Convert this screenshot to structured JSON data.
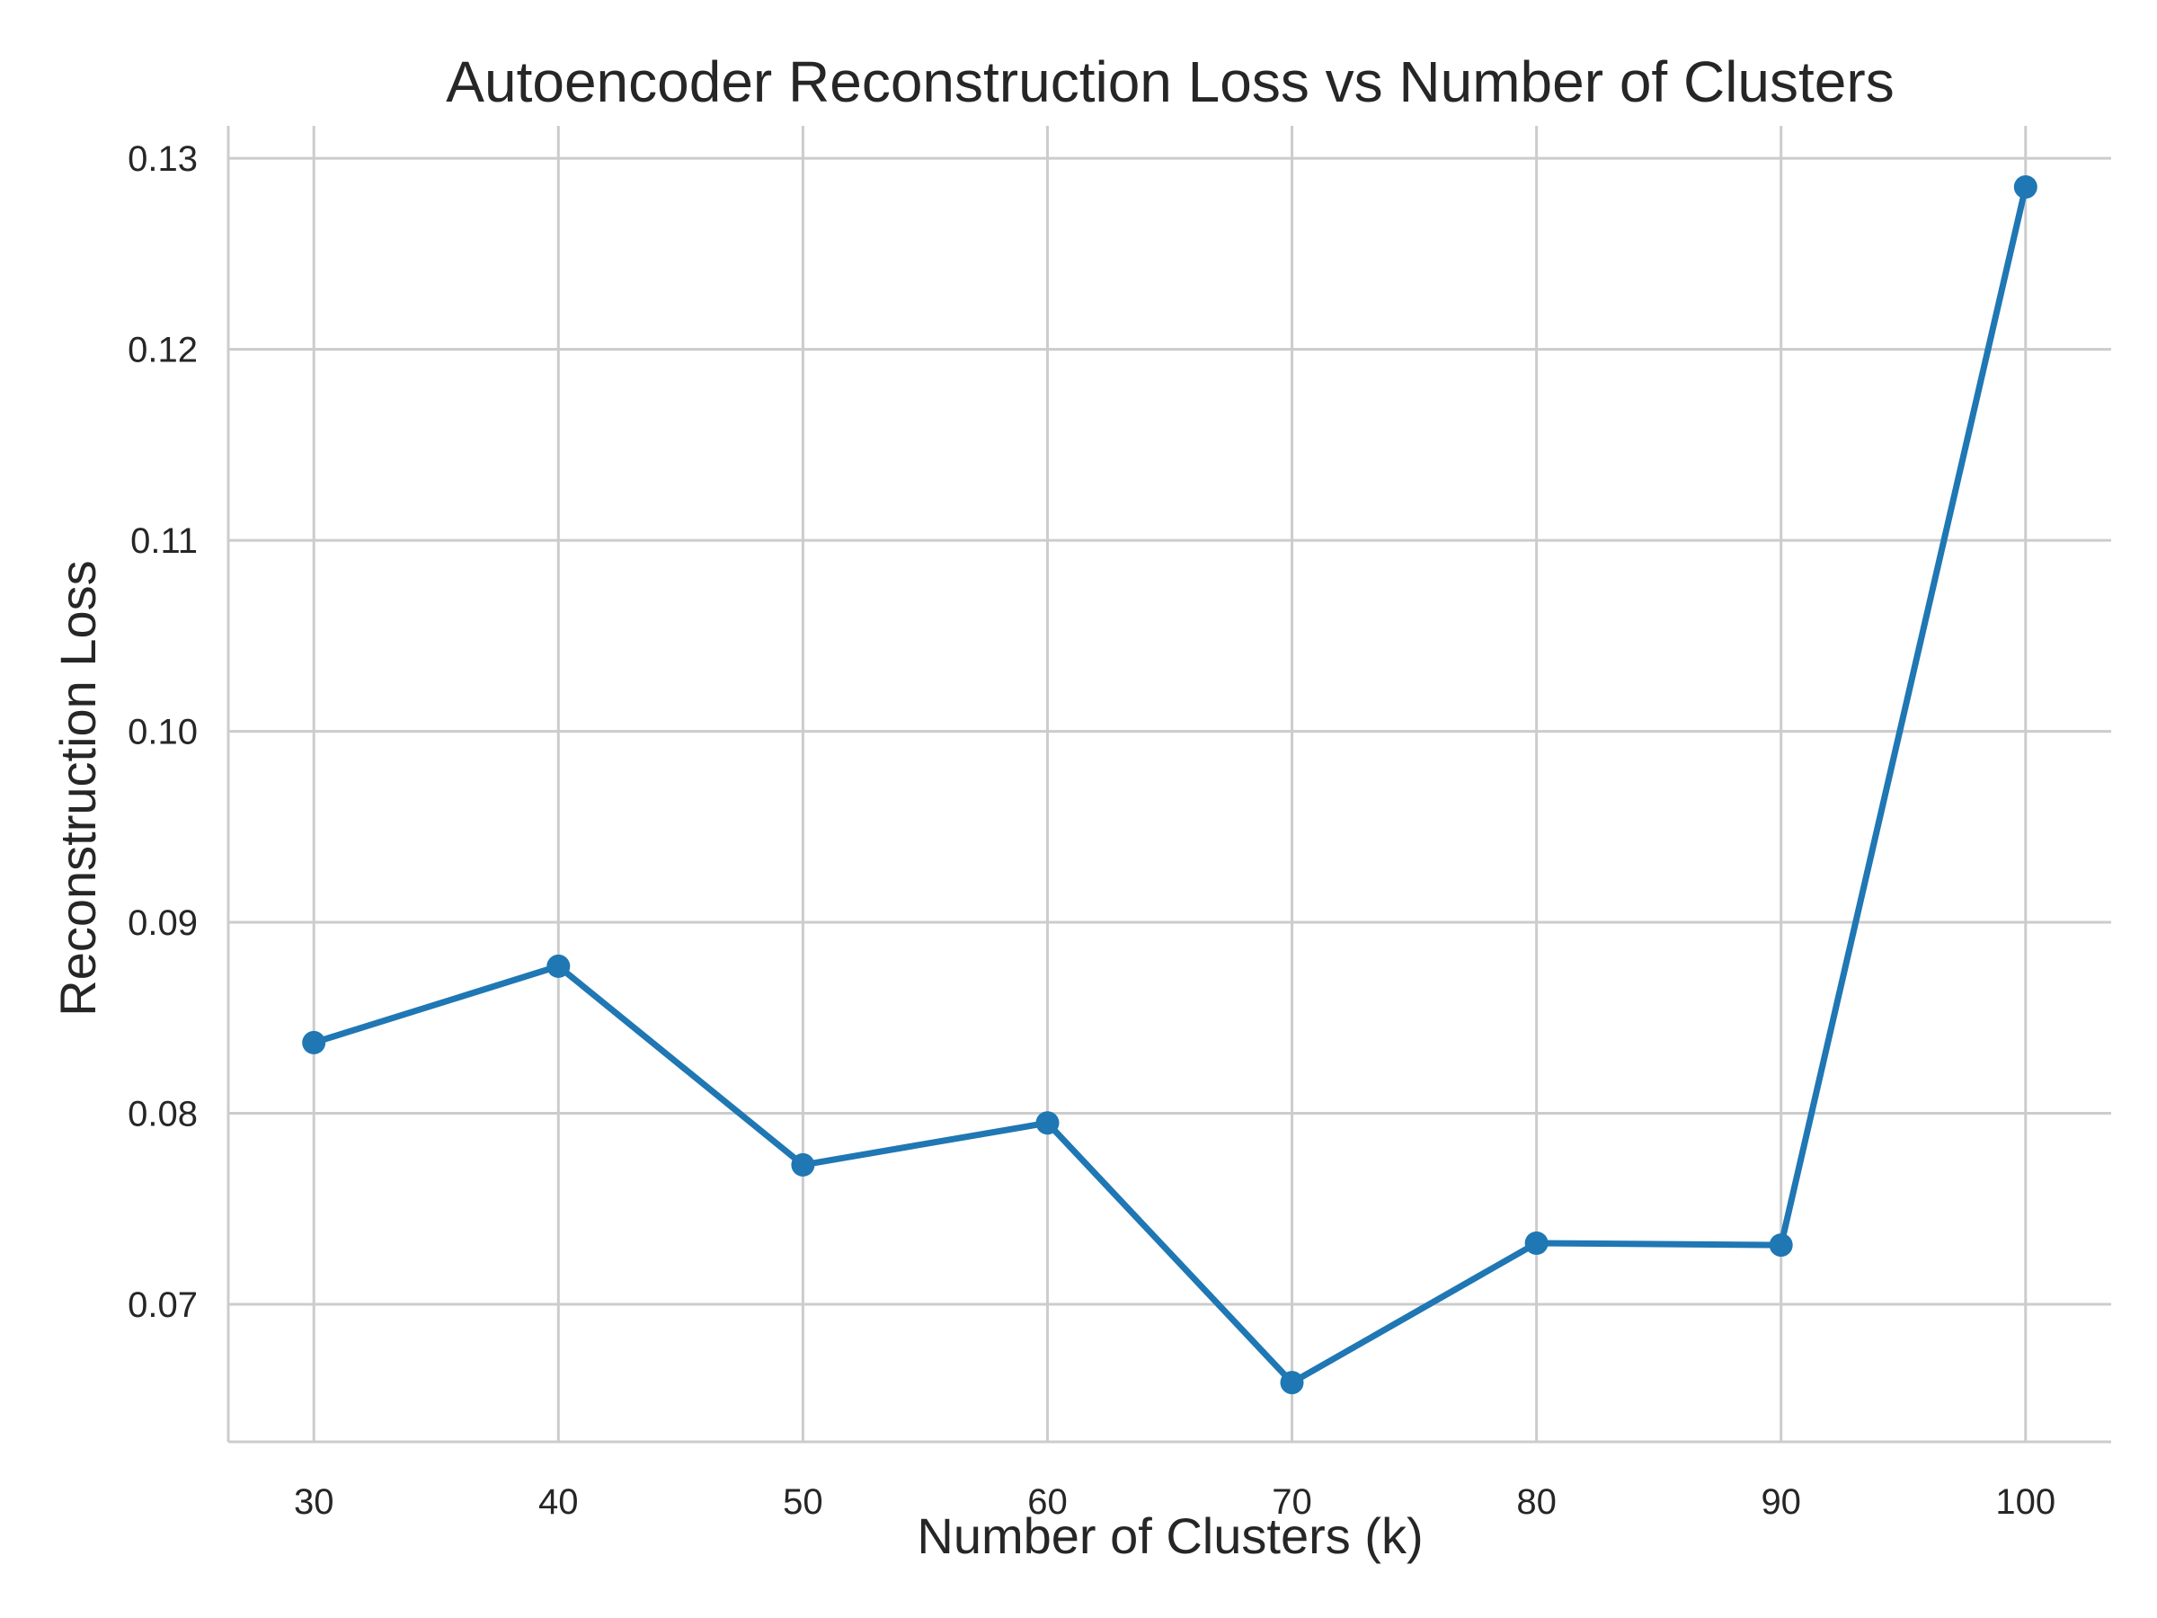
{
  "chart_data": {
    "type": "line",
    "title": "Autoencoder Reconstruction Loss vs Number of Clusters",
    "xlabel": "Number of Clusters (k)",
    "ylabel": "Reconstruction Loss",
    "x": [
      30,
      40,
      50,
      60,
      70,
      80,
      90,
      100
    ],
    "series": [
      {
        "values": [
          0.0837,
          0.0877,
          0.0773,
          0.0795,
          0.0659,
          0.0732,
          0.0731,
          0.1285
        ],
        "color": "#1f77b4",
        "marker": "circle"
      }
    ],
    "xticks": [
      "30",
      "40",
      "50",
      "60",
      "70",
      "80",
      "90",
      "100"
    ],
    "yticks": [
      "0.07",
      "0.08",
      "0.09",
      "0.10",
      "0.11",
      "0.12",
      "0.13"
    ],
    "xlim": [
      26.5,
      103.5
    ],
    "ylim": [
      0.0628,
      0.1317
    ],
    "grid": true,
    "legend": "none"
  }
}
